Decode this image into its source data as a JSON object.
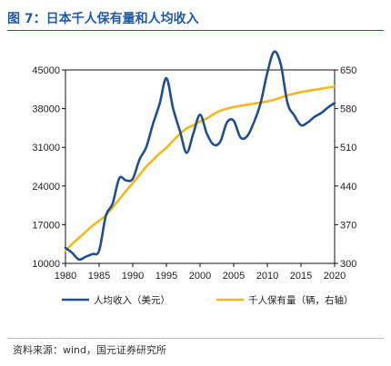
{
  "title": "图 7：日本千人保有量和人均收入",
  "source": "资料来源：wind，国元证券研究所",
  "colors": {
    "accent": "#1f5aa6",
    "income": "#1f4e96",
    "ownership": "#f4b81c"
  },
  "chart_data": {
    "type": "line",
    "xlim": [
      1980,
      2020
    ],
    "x_ticks": [
      1980,
      1985,
      1990,
      1995,
      2000,
      2005,
      2010,
      2015,
      2020
    ],
    "y_left": {
      "range": [
        10000,
        45000
      ],
      "ticks": [
        10000,
        17000,
        24000,
        31000,
        38000,
        45000
      ]
    },
    "y_right": {
      "range": [
        300,
        650
      ],
      "ticks": [
        300,
        370,
        440,
        510,
        580,
        650
      ]
    },
    "legend_position": "bottom",
    "grid": false,
    "series": [
      {
        "name": "人均收入（美元）",
        "axis": "left",
        "color": "#1f4e96",
        "x": [
          1980,
          1981,
          1982,
          1983,
          1984,
          1985,
          1986,
          1987,
          1988,
          1989,
          1990,
          1991,
          1992,
          1993,
          1994,
          1995,
          1996,
          1997,
          1998,
          1999,
          2000,
          2001,
          2002,
          2003,
          2004,
          2005,
          2006,
          2007,
          2008,
          2009,
          2010,
          2011,
          2012,
          2013,
          2014,
          2015,
          2016,
          2017,
          2018,
          2019,
          2020
        ],
        "values": [
          12800,
          11900,
          10700,
          11200,
          11700,
          12300,
          18600,
          20800,
          25400,
          25000,
          25300,
          28800,
          31000,
          35200,
          38900,
          43500,
          38000,
          34000,
          30000,
          33500,
          36900,
          33500,
          31500,
          32000,
          35500,
          35800,
          32800,
          33000,
          35500,
          39000,
          44500,
          48300,
          46000,
          39000,
          36800,
          35000,
          35500,
          36500,
          37200,
          38200,
          39000
        ]
      },
      {
        "name": "千人保有量（辆，右轴）",
        "axis": "right",
        "color": "#f4b81c",
        "x": [
          1980,
          1981,
          1982,
          1983,
          1984,
          1985,
          1986,
          1987,
          1988,
          1989,
          1990,
          1991,
          1992,
          1993,
          1994,
          1995,
          1996,
          1997,
          1998,
          1999,
          2000,
          2001,
          2002,
          2003,
          2004,
          2005,
          2006,
          2007,
          2008,
          2009,
          2010,
          2011,
          2012,
          2013,
          2014,
          2015,
          2016,
          2017,
          2018,
          2019,
          2020
        ],
        "values": [
          323,
          335,
          346,
          357,
          368,
          377,
          387,
          401,
          416,
          431,
          445,
          460,
          475,
          487,
          499,
          509,
          522,
          534,
          544,
          550,
          557,
          562,
          570,
          576,
          580,
          583,
          585,
          587,
          589,
          591,
          593,
          596,
          600,
          604,
          607,
          610,
          612,
          614,
          616,
          618,
          620
        ]
      }
    ]
  }
}
